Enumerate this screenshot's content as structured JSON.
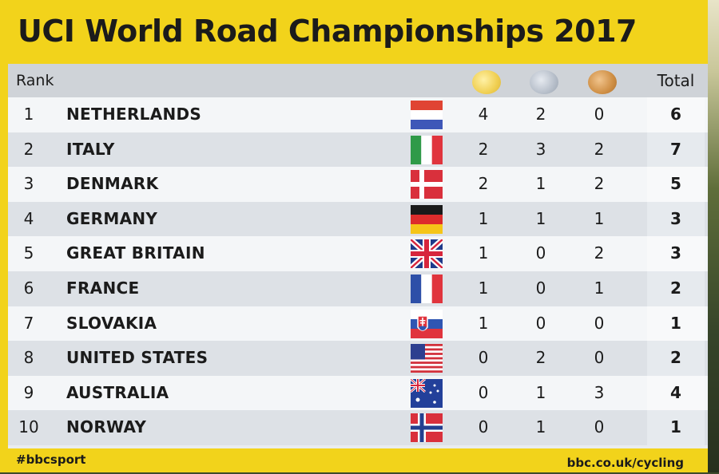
{
  "title": "UCI World Road Championships 2017",
  "header": {
    "rank": "Rank",
    "total": "Total"
  },
  "medal_colors": {
    "gold": "#f0cf52",
    "silver": "#b7bfca",
    "bronze": "#cf8f45"
  },
  "rows": [
    {
      "rank": "1",
      "country": "NETHERLANDS",
      "flag": "netherlands-flag-icon",
      "gold": "4",
      "silver": "2",
      "bronze": "0",
      "total": "6"
    },
    {
      "rank": "2",
      "country": "ITALY",
      "flag": "italy-flag-icon",
      "gold": "2",
      "silver": "3",
      "bronze": "2",
      "total": "7"
    },
    {
      "rank": "3",
      "country": "DENMARK",
      "flag": "denmark-flag-icon",
      "gold": "2",
      "silver": "1",
      "bronze": "2",
      "total": "5"
    },
    {
      "rank": "4",
      "country": "GERMANY",
      "flag": "germany-flag-icon",
      "gold": "1",
      "silver": "1",
      "bronze": "1",
      "total": "3"
    },
    {
      "rank": "5",
      "country": "GREAT BRITAIN",
      "flag": "great-britain-flag-icon",
      "gold": "1",
      "silver": "0",
      "bronze": "2",
      "total": "3"
    },
    {
      "rank": "6",
      "country": "FRANCE",
      "flag": "france-flag-icon",
      "gold": "1",
      "silver": "0",
      "bronze": "1",
      "total": "2"
    },
    {
      "rank": "7",
      "country": "SLOVAKIA",
      "flag": "slovakia-flag-icon",
      "gold": "1",
      "silver": "0",
      "bronze": "0",
      "total": "1"
    },
    {
      "rank": "8",
      "country": "UNITED STATES",
      "flag": "united-states-flag-icon",
      "gold": "0",
      "silver": "2",
      "bronze": "0",
      "total": "2"
    },
    {
      "rank": "9",
      "country": "AUSTRALIA",
      "flag": "australia-flag-icon",
      "gold": "0",
      "silver": "1",
      "bronze": "3",
      "total": "4"
    },
    {
      "rank": "10",
      "country": "NORWAY",
      "flag": "norway-flag-icon",
      "gold": "0",
      "silver": "1",
      "bronze": "0",
      "total": "1"
    }
  ],
  "footer": {
    "hashtag": "#bbcsport",
    "url": "bbc.co.uk/cycling"
  }
}
